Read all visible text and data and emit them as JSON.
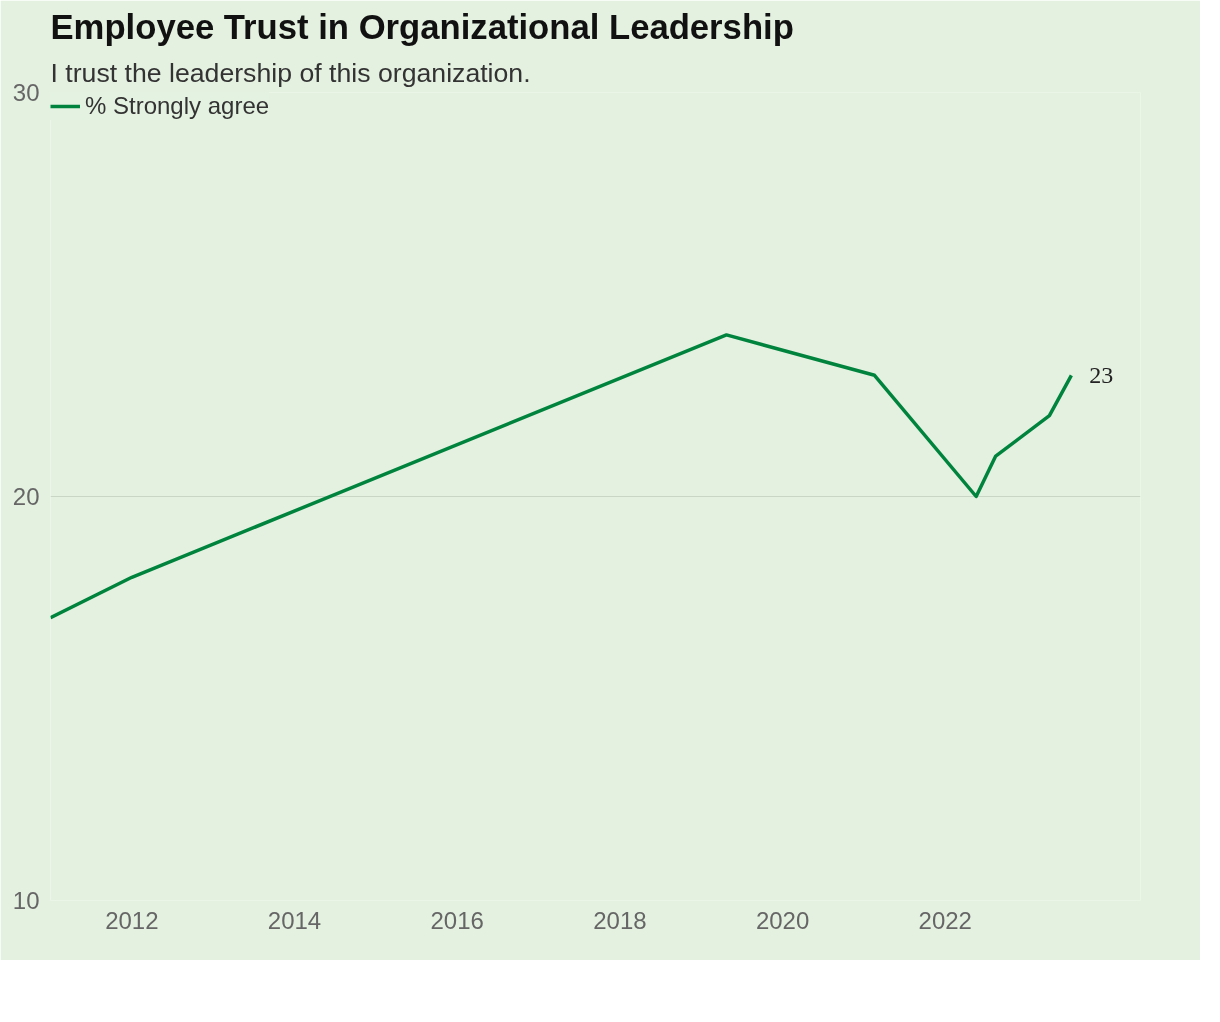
{
  "chart_data": {
    "type": "line",
    "title": "Employee Trust in Organizational Leadership",
    "subtitle": "I trust the leadership of this organization.",
    "x": [
      2011.0,
      2012.0,
      2019.31,
      2021.13,
      2022.38,
      2022.62,
      2023.28,
      2023.55
    ],
    "series": [
      {
        "name": "% Strongly agree",
        "color": "#00843d",
        "values": [
          17,
          18,
          24,
          23,
          20,
          21,
          22,
          23
        ],
        "value_labels": [
          null,
          null,
          null,
          null,
          null,
          null,
          null,
          "23"
        ]
      }
    ],
    "xlim": [
      2011.0,
      2024.4
    ],
    "xticks": [
      2012,
      2014,
      2016,
      2018,
      2020,
      2022
    ],
    "ylim": [
      10,
      30
    ],
    "yticks": [
      10,
      20,
      30
    ],
    "grid": "y",
    "legend": "top left",
    "line_style": "solid",
    "marker": "none"
  }
}
